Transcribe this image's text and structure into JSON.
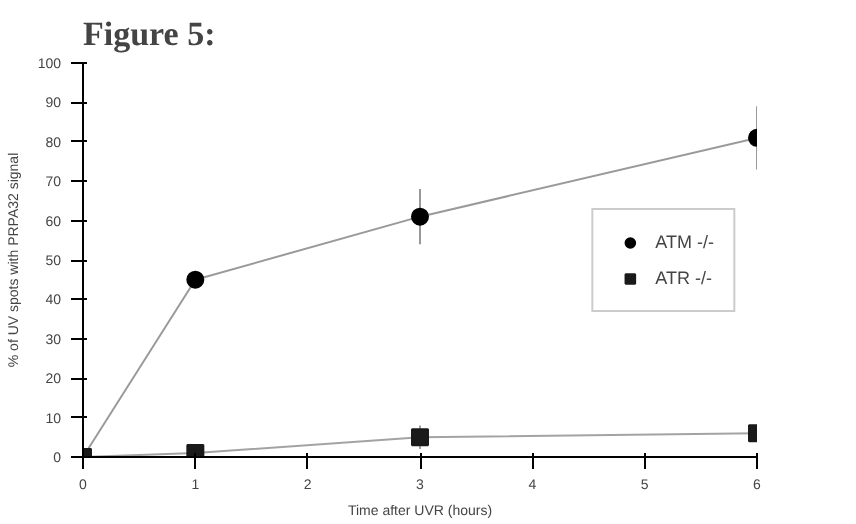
{
  "chart_data": {
    "type": "line",
    "title": "Figure 5:",
    "xlabel": "Time after UVR (hours)",
    "ylabel": "% of UV spots with PRPA32 signal",
    "x": [
      0,
      1,
      3,
      6
    ],
    "series": [
      {
        "name": "ATM -/-",
        "color": "#000000",
        "values": [
          0,
          45,
          61,
          81
        ],
        "errors": [
          null,
          null,
          7,
          8
        ],
        "marker": "circle"
      },
      {
        "name": "ATR -/-",
        "color": "#1a1a1a",
        "values": [
          0,
          1,
          5,
          6
        ],
        "errors": [
          null,
          null,
          3,
          2
        ],
        "marker": "square"
      }
    ],
    "xlim": [
      0,
      6
    ],
    "xticks": [
      0,
      1,
      2,
      3,
      4,
      5,
      6
    ],
    "ylim": [
      0,
      100
    ],
    "yticks": [
      0,
      10,
      20,
      30,
      40,
      50,
      60,
      70,
      80,
      90,
      100
    ],
    "grid": false,
    "legend": "right"
  }
}
